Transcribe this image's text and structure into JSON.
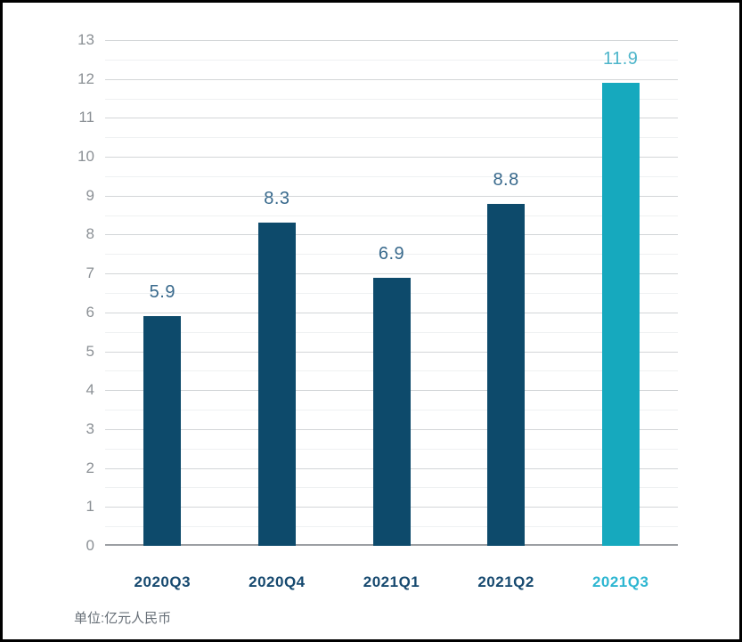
{
  "frame": {
    "border_color": "#000000",
    "background": "#ffffff"
  },
  "chart_data": {
    "type": "bar",
    "title": "",
    "xlabel": "",
    "ylabel": "",
    "categories": [
      "2020Q3",
      "2020Q4",
      "2021Q1",
      "2021Q2",
      "2021Q3"
    ],
    "values": [
      5.9,
      8.3,
      6.9,
      8.8,
      11.9
    ],
    "value_labels": [
      "5.9",
      "8.3",
      "6.9",
      "8.8",
      "11.9"
    ],
    "highlight_index": 4,
    "unit_note": "单位:亿元人民币",
    "ylim": [
      0,
      13
    ],
    "y_major_step": 1,
    "y_minor_step": 0.5,
    "y_tick_labels": [
      "0",
      "1",
      "2",
      "3",
      "4",
      "5",
      "6",
      "7",
      "8",
      "9",
      "10",
      "11",
      "12",
      "13"
    ],
    "grid": true,
    "legend": "none",
    "colors": {
      "bar": "#0d4a6b",
      "bar_highlight": "#16a9be",
      "value_label": "#38698c",
      "value_label_highlight": "#4db5ca",
      "x_label": "#16496f",
      "x_label_highlight": "#2db6d1",
      "y_tick": "#8b9095",
      "grid_major": "#d3d6d8",
      "grid_minor": "#eff1f2",
      "axis_line": "#9c9fa3",
      "unit_text": "#676f77"
    }
  }
}
